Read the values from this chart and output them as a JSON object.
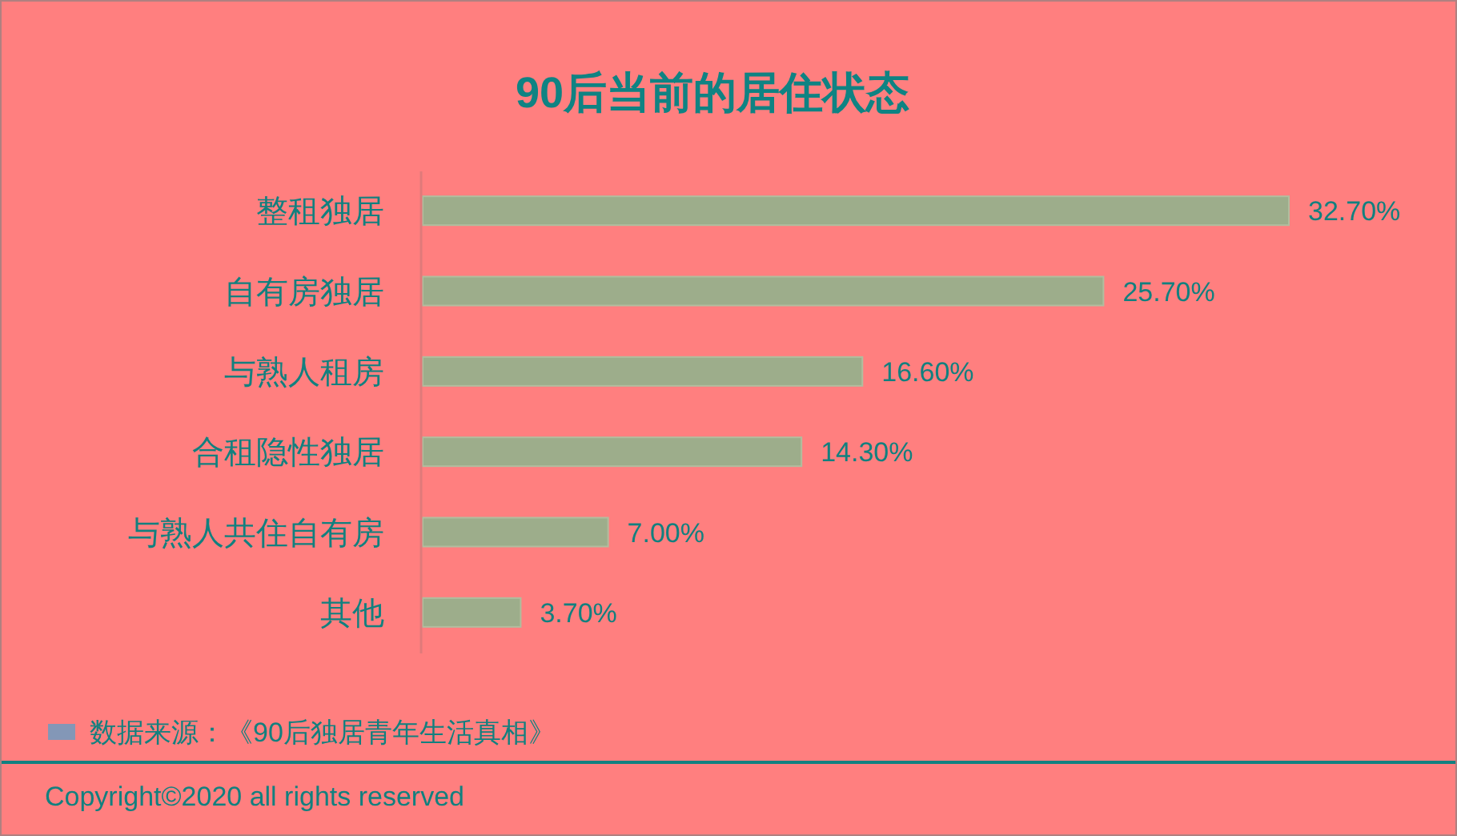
{
  "chart_data": {
    "type": "bar",
    "orientation": "horizontal",
    "title": "90后当前的居住状态",
    "categories": [
      "整租独居",
      "自有房独居",
      "与熟人租房",
      "合租隐性独居",
      "与熟人共住自有房",
      "其他"
    ],
    "values": [
      32.7,
      25.7,
      16.6,
      14.3,
      7.0,
      3.7
    ],
    "value_labels": [
      "32.70%",
      "25.70%",
      "16.60%",
      "14.30%",
      "7.00%",
      "3.70%"
    ],
    "color": "#9dad8b",
    "annotations": [
      "数据来源：《90后独居青年生活真相》",
      "Copyright©2020 all rights reserved"
    ]
  }
}
